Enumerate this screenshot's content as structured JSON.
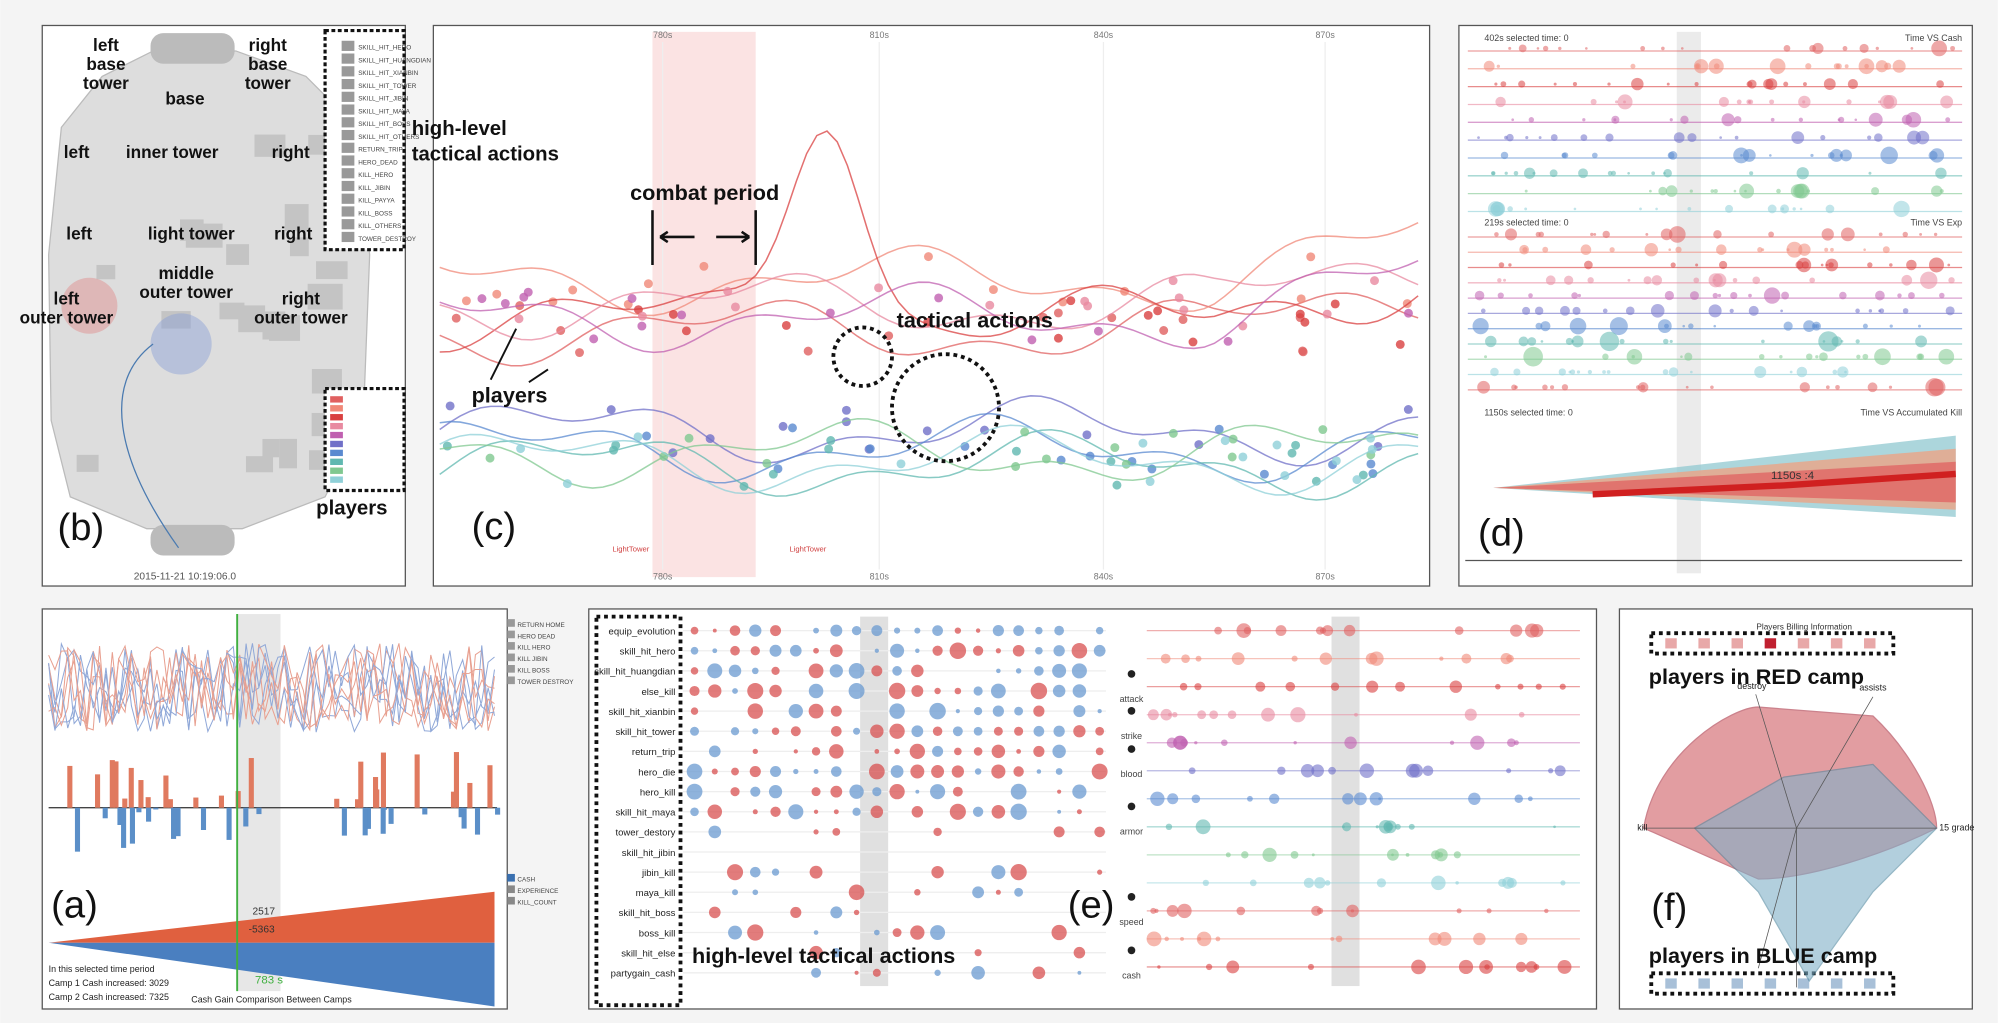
{
  "panel_b": {
    "label": "(b)",
    "timestamp": "2015-11-21 10:19:06.0",
    "map_labels": [
      [
        "left",
        "base",
        "tower"
      ],
      [
        "right",
        "base",
        "tower"
      ],
      [
        "base"
      ],
      [
        "left"
      ],
      [
        "inner tower"
      ],
      [
        "right"
      ],
      [
        "left"
      ],
      [
        "light tower"
      ],
      [
        "right"
      ],
      [
        "middle",
        "outer tower"
      ],
      [
        "left",
        "outer tower"
      ],
      [
        "right",
        "outer tower"
      ]
    ],
    "actions_annotation": [
      "high-level",
      "tactical actions"
    ],
    "players_annotation": "players",
    "action_legend": [
      "SKILL_HIT_HERO",
      "SKILL_HIT_HUANGDIAN",
      "SKILL_HIT_XIANBIN",
      "SKILL_HIT_TOWER",
      "SKILL_HIT_JIBIN",
      "SKILL_HIT_MAYA",
      "SKILL_HIT_BOSS",
      "SKILL_HIT_OTHERS",
      "RETURN_TRIP",
      "HERO_DEAD",
      "KILL_HERO",
      "KILL_JIBIN",
      "KILL_PAYYA",
      "KILL_BOSS",
      "KILL_OTHERS",
      "TOWER_DESTROY"
    ]
  },
  "panel_c": {
    "label": "(c)",
    "time_ticks": [
      "780s",
      "810s",
      "840s",
      "870s"
    ],
    "combat_annotation": "combat period",
    "tactical_annotation": "tactical actions",
    "players_annotation": "players",
    "tower_labels": [
      "LightTower",
      "LightTower"
    ]
  },
  "panel_d": {
    "label": "(d)",
    "sections": [
      {
        "info": "402s selected time: 0",
        "title": "Time VS Cash"
      },
      {
        "info": "219s selected time: 0",
        "title": "Time VS Exp"
      },
      {
        "info": "1150s selected time: 0",
        "title": "Time VS Accumulated Kill"
      }
    ],
    "highlight": "1150s :4"
  },
  "panel_a": {
    "label": "(a)",
    "event_legend": [
      "RETURN HOME",
      "HERO DEAD",
      "KILL HERO",
      "KILL JIBIN",
      "KILL BOSS",
      "TOWER DESTROY"
    ],
    "metric_legend": [
      "CASH",
      "EXPERIENCE",
      "KILL_COUNT"
    ],
    "summary": [
      "In this selected time period",
      "Camp 1 Cash increased: 3029",
      "Camp 2 Cash increased: 7325"
    ],
    "caption": "Cash Gain Comparison Between Camps",
    "time": "783 s",
    "red_value": "2517",
    "blue_value": "-5363"
  },
  "panel_e": {
    "label": "(e)",
    "rows": [
      "equip_evolution",
      "skill_hit_hero",
      "skill_hit_huangdian",
      "else_kill",
      "skill_hit_xianbin",
      "skill_hit_tower",
      "return_trip",
      "hero_die",
      "hero_kill",
      "skill_hit_maya",
      "tower_destory",
      "skill_hit_jibin",
      "jibin_kill",
      "maya_kill",
      "skill_hit_boss",
      "boss_kill",
      "skill_hit_else",
      "partygain_cash"
    ],
    "annotation": "high-level tactical actions",
    "attributes": [
      "attack",
      "strike",
      "blood",
      "armor",
      "speed",
      "cash"
    ]
  },
  "panel_f": {
    "label": "(f)",
    "title": "Players Billing Information",
    "red_annotation": "players in RED camp",
    "blue_annotation": "players in BLUE camp",
    "axes": [
      "destroy",
      "assists",
      "kill",
      "15 grade"
    ]
  }
}
